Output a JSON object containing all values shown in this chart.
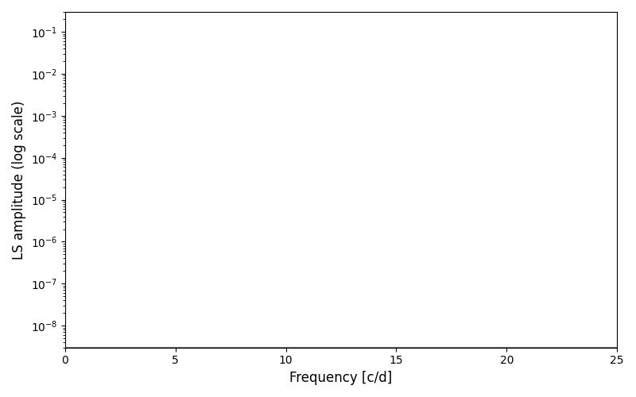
{
  "title": "",
  "xlabel": "Frequency [c/d]",
  "ylabel": "LS amplitude (log scale)",
  "xlim": [
    0,
    25
  ],
  "ylim": [
    3e-09,
    0.3
  ],
  "line_color": "#0000ff",
  "line_width": 0.5,
  "background_color": "#ffffff",
  "yscale": "log",
  "yticks": [
    1e-08,
    1e-07,
    1e-06,
    1e-05,
    0.0001,
    0.001,
    0.01,
    0.1
  ],
  "xticks": [
    0,
    5,
    10,
    15,
    20,
    25
  ],
  "figsize": [
    8.0,
    5.0
  ],
  "dpi": 100
}
